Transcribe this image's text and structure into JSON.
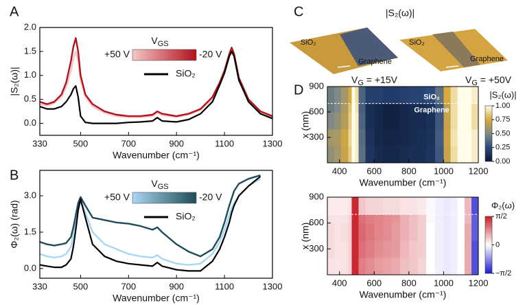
{
  "chart_data": [
    {
      "type": "line",
      "label": "A",
      "xlabel": "Wavenumber (cm⁻¹)",
      "ylabel": "|S₂(ω)|",
      "xlim": [
        330,
        1300
      ],
      "ylim": [
        -0.25,
        2.0
      ],
      "xticks": [
        330,
        500,
        700,
        900,
        1100,
        1300
      ],
      "yticks": [
        {
          "value": 0,
          "label": "0.0"
        },
        0.5,
        {
          "value": 1,
          "label": "1.0"
        },
        1.5,
        {
          "value": 2,
          "label": "2.0"
        }
      ],
      "legend_title": {
        "main": "V",
        "sub": "GS"
      },
      "x": [
        330,
        360,
        390,
        420,
        440,
        460,
        470,
        480,
        490,
        500,
        520,
        550,
        600,
        650,
        700,
        750,
        800,
        820,
        840,
        900,
        950,
        1000,
        1050,
        1080,
        1100,
        1120,
        1130,
        1140,
        1160,
        1200,
        1250,
        1300
      ],
      "series": [
        {
          "name": "+50 V",
          "color": "#f4c6c6",
          "values": [
            0.4,
            0.37,
            0.42,
            0.55,
            0.75,
            1.1,
            1.35,
            1.5,
            1.3,
            0.9,
            0.55,
            0.35,
            0.22,
            0.15,
            0.13,
            0.13,
            0.15,
            0.22,
            0.17,
            0.13,
            0.18,
            0.28,
            0.5,
            0.8,
            1.05,
            1.4,
            1.5,
            1.4,
            0.9,
            0.47,
            0.23,
            0.13
          ]
        },
        {
          "name": "-20 V",
          "color": "#b3121c",
          "values": [
            0.45,
            0.4,
            0.45,
            0.6,
            0.85,
            1.3,
            1.6,
            1.78,
            1.5,
            1.0,
            0.6,
            0.4,
            0.25,
            0.18,
            0.15,
            0.15,
            0.18,
            0.25,
            0.2,
            0.15,
            0.2,
            0.3,
            0.55,
            0.85,
            1.1,
            1.45,
            1.58,
            1.45,
            0.95,
            0.5,
            0.25,
            0.15
          ]
        },
        {
          "name": "SiO₂",
          "color": "#000000",
          "values": [
            0.35,
            0.3,
            0.3,
            0.35,
            0.45,
            0.6,
            0.72,
            0.78,
            0.55,
            0.15,
            0.02,
            0,
            0,
            0,
            0.02,
            0.03,
            0.05,
            0.12,
            0.05,
            0.03,
            0.08,
            0.2,
            0.45,
            0.8,
            1.05,
            1.4,
            1.5,
            1.4,
            0.9,
            0.45,
            0.2,
            0.1
          ]
        }
      ]
    },
    {
      "type": "line",
      "label": "B",
      "xlabel": "Wavenumber (cm⁻¹)",
      "ylabel": "Φ₂(ω) (rad)",
      "xlim": [
        330,
        1300
      ],
      "ylim": [
        -0.4,
        4.05
      ],
      "xticks": [
        330,
        500,
        700,
        900,
        1100,
        1300
      ],
      "yticks": [
        {
          "value": 0,
          "label": "0.0"
        },
        1.5,
        {
          "value": 3,
          "label": "3.0"
        }
      ],
      "legend_title": {
        "main": "V",
        "sub": "GS"
      },
      "x": [
        330,
        360,
        390,
        420,
        440,
        460,
        470,
        480,
        490,
        500,
        520,
        550,
        600,
        650,
        700,
        750,
        800,
        820,
        840,
        900,
        950,
        1000,
        1050,
        1080,
        1100,
        1120,
        1130,
        1140,
        1160,
        1200,
        1250,
        1300
      ],
      "series": [
        {
          "name": "+50 V",
          "color": "#a9d6f2",
          "values": [
            0.6,
            0.5,
            0.45,
            0.5,
            0.6,
            0.9,
            1.4,
            2.0,
            2.6,
            2.9,
            2.3,
            1.5,
            1.0,
            0.8,
            0.6,
            0.5,
            0.45,
            0.55,
            0.4,
            0.2,
            0.15,
            0.2,
            0.6,
            1.1,
            1.6,
            2.2,
            2.5,
            2.7,
            3.0,
            3.4,
            3.7,
            null
          ]
        },
        {
          "name": "-20 V",
          "color": "#1f4b56",
          "values": [
            1.1,
            1.0,
            0.95,
            1.0,
            1.05,
            1.3,
            1.7,
            2.2,
            2.7,
            2.95,
            2.6,
            2.1,
            2.0,
            1.9,
            1.85,
            1.75,
            1.6,
            1.7,
            1.5,
            1.0,
            0.7,
            0.5,
            0.8,
            1.3,
            1.9,
            2.6,
            2.9,
            3.2,
            3.5,
            3.7,
            3.85,
            null
          ]
        },
        {
          "name": "SiO₂",
          "color": "#000000",
          "values": [
            0.15,
            0.1,
            0.05,
            0.05,
            0.15,
            0.4,
            0.9,
            1.6,
            2.4,
            2.85,
            2.1,
            1.0,
            0.5,
            0.3,
            0.2,
            0.15,
            0.1,
            0.25,
            0.1,
            -0.05,
            -0.1,
            -0.1,
            0.3,
            0.8,
            1.3,
            1.9,
            2.3,
            2.6,
            3.0,
            3.4,
            3.8,
            null
          ]
        }
      ]
    },
    {
      "type": "heatmap",
      "label": "D",
      "xlabel": "Wavenumber (cm⁻¹)",
      "ylabel": "x (nm)",
      "xlim": [
        330,
        1200
      ],
      "ylim": [
        0,
        900
      ],
      "xticks": [
        400,
        600,
        800,
        1000,
        1200
      ],
      "yticks": [
        300,
        600,
        900
      ],
      "colorbar_label": "|S₂(ω)|",
      "colorscale": [
        "#0a1633",
        "#2c4a7c",
        "#7f8a86",
        "#d9a93a",
        "#fffde8"
      ],
      "clim": [
        0,
        1
      ],
      "cticks": [
        {
          "value": 0,
          "label": "0.00"
        },
        {
          "value": 0.25,
          "label": "0.25"
        },
        {
          "value": 0.5,
          "label": "0.50"
        },
        {
          "value": 0.75,
          "label": "0.75"
        },
        {
          "value": 1,
          "label": "1.00"
        }
      ],
      "hline": 700,
      "annotations": [
        "SiO₂",
        "Graphene"
      ],
      "xbins": [
        330,
        370,
        410,
        450,
        470,
        490,
        510,
        550,
        600,
        650,
        700,
        750,
        800,
        850,
        900,
        950,
        1000,
        1040,
        1080,
        1120,
        1160,
        1200
      ],
      "ybins": [
        0,
        200,
        400,
        600,
        700,
        900
      ],
      "z": [
        [
          0.55,
          0.6,
          0.7,
          0.85,
          1.0,
          0.95,
          0.4,
          0.15,
          0.1,
          0.08,
          0.08,
          0.1,
          0.12,
          0.12,
          0.15,
          0.3,
          0.7,
          0.9,
          1.0,
          1.0,
          0.95
        ],
        [
          0.6,
          0.62,
          0.72,
          0.88,
          1.0,
          0.95,
          0.38,
          0.14,
          0.09,
          0.07,
          0.07,
          0.09,
          0.11,
          0.12,
          0.14,
          0.32,
          0.72,
          0.92,
          1.0,
          1.0,
          0.95
        ],
        [
          0.5,
          0.55,
          0.65,
          0.85,
          1.0,
          0.95,
          0.35,
          0.12,
          0.08,
          0.06,
          0.06,
          0.08,
          0.1,
          0.1,
          0.13,
          0.3,
          0.7,
          0.9,
          1.0,
          1.0,
          0.9
        ],
        [
          0.45,
          0.5,
          0.62,
          0.82,
          1.0,
          0.92,
          0.33,
          0.12,
          0.08,
          0.06,
          0.06,
          0.08,
          0.1,
          0.1,
          0.13,
          0.28,
          0.68,
          0.9,
          1.0,
          1.0,
          0.9
        ],
        [
          0.45,
          0.5,
          0.6,
          0.75,
          1.0,
          0.9,
          0.35,
          0.2,
          0.2,
          0.18,
          0.18,
          0.2,
          0.22,
          0.22,
          0.25,
          0.4,
          0.75,
          0.9,
          1.0,
          1.0,
          0.95
        ]
      ]
    },
    {
      "type": "heatmap",
      "xlabel": "Wavenumber (cm⁻¹)",
      "ylabel": "x (nm)",
      "xlim": [
        330,
        1200
      ],
      "ylim": [
        0,
        900
      ],
      "xticks": [
        400,
        600,
        800,
        1000,
        1200
      ],
      "yticks": [
        300,
        600,
        900
      ],
      "colorbar_label": "Φ₂(ω)",
      "colorscale": [
        "#1a1ad0",
        "#ffffff",
        "#c81e28"
      ],
      "clim": [
        -1.571,
        1.571
      ],
      "cticks": [
        {
          "value": -1.571,
          "label": "−π/2"
        },
        0,
        {
          "value": 1.571,
          "label": "π/2"
        }
      ],
      "hline": 700,
      "xbins": [
        330,
        370,
        410,
        450,
        470,
        490,
        510,
        550,
        600,
        650,
        700,
        750,
        800,
        850,
        900,
        950,
        1000,
        1040,
        1080,
        1120,
        1160,
        1200
      ],
      "ybins": [
        0,
        200,
        400,
        600,
        700,
        900
      ],
      "z": [
        [
          0.2,
          0.18,
          0.2,
          0.3,
          1.5,
          1.5,
          0.9,
          0.8,
          0.7,
          0.65,
          0.6,
          0.45,
          0.4,
          0.3,
          0.0,
          -0.1,
          -0.15,
          -0.1,
          0.0,
          0.6,
          -1.2
        ],
        [
          0.25,
          0.2,
          0.2,
          0.3,
          1.5,
          1.5,
          1.0,
          0.9,
          0.8,
          0.75,
          0.7,
          0.5,
          0.4,
          0.35,
          0.0,
          -0.1,
          -0.15,
          -0.1,
          0.0,
          0.6,
          -1.2
        ],
        [
          0.25,
          0.2,
          0.22,
          0.32,
          1.5,
          1.5,
          1.05,
          0.95,
          0.85,
          0.8,
          0.7,
          0.55,
          0.45,
          0.35,
          0.0,
          -0.1,
          -0.15,
          -0.1,
          0.0,
          0.6,
          -1.1
        ],
        [
          0.2,
          0.18,
          0.2,
          0.3,
          1.5,
          1.5,
          1.0,
          0.9,
          0.85,
          0.8,
          0.75,
          0.55,
          0.45,
          0.35,
          0.05,
          -0.1,
          -0.15,
          -0.1,
          0.0,
          0.5,
          -1.1
        ],
        [
          0.15,
          0.15,
          0.15,
          0.2,
          1.5,
          1.5,
          0.4,
          0.3,
          0.3,
          0.25,
          0.25,
          0.2,
          0.2,
          0.15,
          -0.05,
          -0.1,
          -0.15,
          -0.1,
          0.0,
          0.5,
          -1.2
        ]
      ]
    }
  ],
  "panel_c": {
    "label": "C",
    "title": "|S₂(ω)|",
    "images": [
      {
        "top": "SiO₂",
        "bottom": "Graphene",
        "gate": {
          "main": "V",
          "sub": "G",
          "rest": " = +15V"
        }
      },
      {
        "top": "SiO₂",
        "bottom": "Graphene",
        "gate": {
          "main": "V",
          "sub": "G",
          "rest": " = +50V"
        }
      }
    ]
  }
}
